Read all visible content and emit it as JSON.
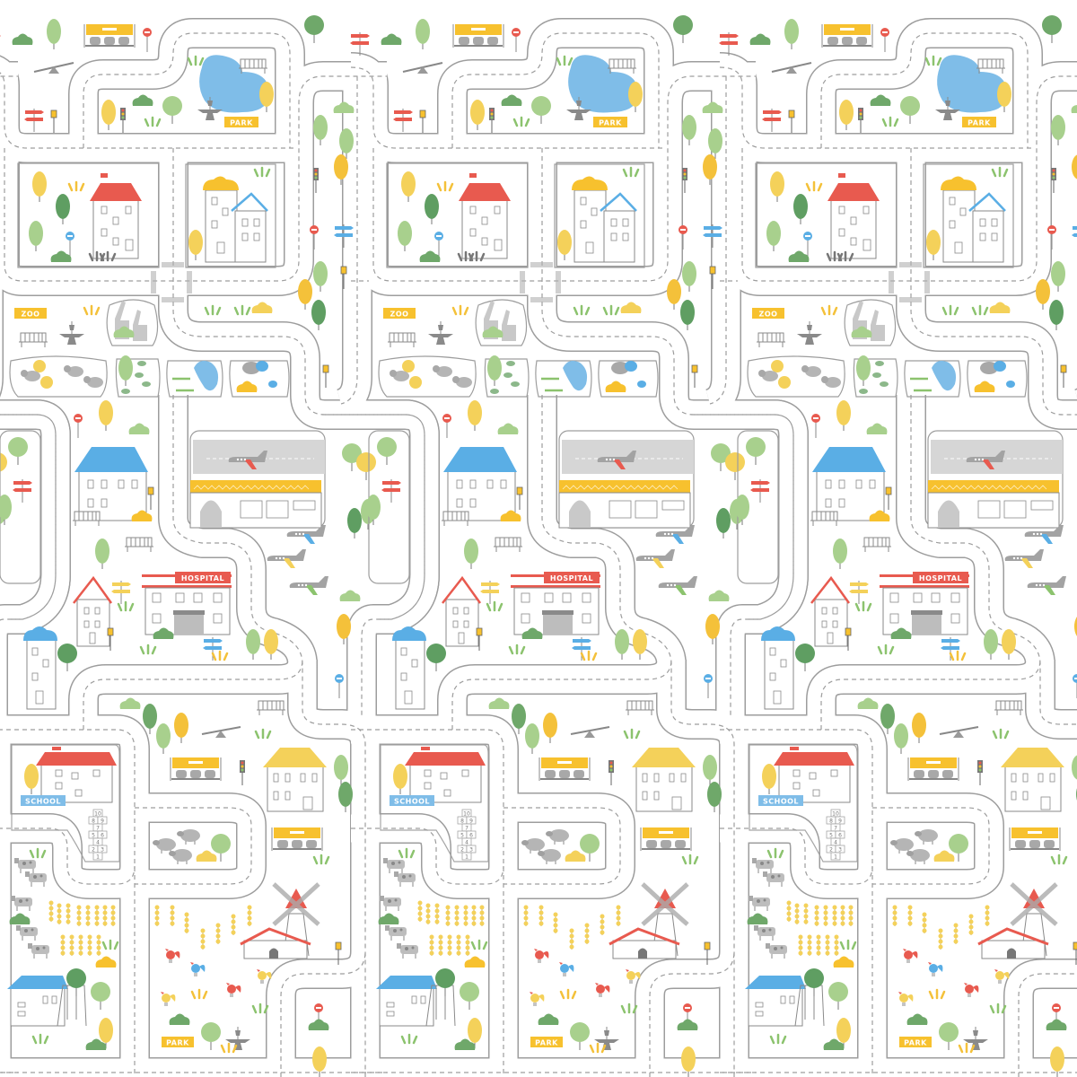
{
  "map": {
    "tile_repeat": "horizontal",
    "labels": {
      "park_top": "PARK",
      "zoo": "ZOO",
      "hospital": "HOSPITAL",
      "school": "SCHOOL",
      "park_bottom": "PARK"
    },
    "hopscotch": [
      "1",
      "2",
      "3",
      "4",
      "5",
      "6",
      "7",
      "8",
      "9",
      "10"
    ],
    "districts": [
      "park",
      "houses",
      "zoo",
      "airport",
      "hospital",
      "school",
      "farm",
      "windmill"
    ],
    "icons": [
      "tree-icon",
      "bush-icon",
      "bench-icon",
      "bus-stop-icon",
      "no-entry-sign-icon",
      "street-lamp-icon",
      "traffic-light-icon",
      "direction-sign-icon",
      "airplane-icon",
      "fountain-icon",
      "windmill-icon",
      "sheep-icon",
      "cow-icon",
      "rooster-icon",
      "elephant-icon",
      "giraffe-icon",
      "lion-icon",
      "crocodile-icon",
      "turtle-icon"
    ],
    "colors": {
      "road_edge": "#9d9d9d",
      "road": "#ffffff",
      "tree_green": "#8cc36e",
      "tree_dark": "#5f9e62",
      "tree_yellow": "#f4d15a",
      "accent_yellow": "#f7c12e",
      "accent_red": "#e85a4f",
      "accent_blue": "#5aaee5",
      "water": "#7fbde8",
      "animal_grey": "#b5b5b5"
    }
  }
}
